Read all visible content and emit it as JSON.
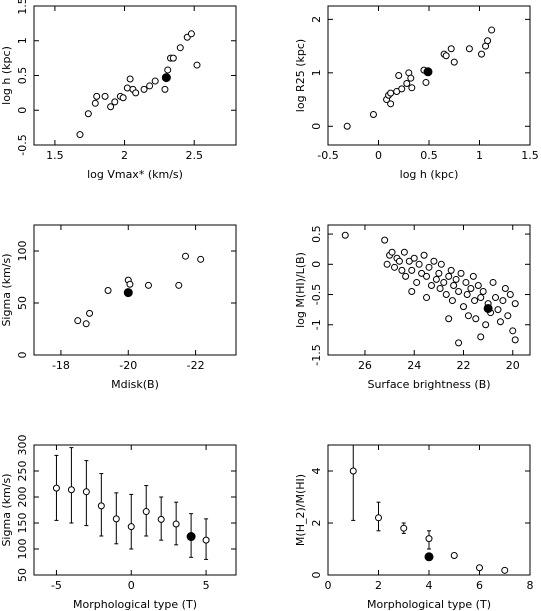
{
  "chart_data": [
    {
      "type": "scatter",
      "xlabel": "log Vmax* (km/s)",
      "ylabel": "log h (kpc)",
      "xlim": [
        1.35,
        2.8
      ],
      "ylim": [
        -0.5,
        1.5
      ],
      "xticks": [
        1.5,
        2,
        2.5
      ],
      "xtick_labels": [
        "1.5",
        "2",
        "2.5"
      ],
      "yticks": [
        -0.5,
        0,
        0.5,
        1,
        1.5
      ],
      "ytick_labels": [
        "-0.5",
        "0",
        "0.5",
        "1",
        "1.5"
      ],
      "points": [
        {
          "x": 1.68,
          "y": -0.35
        },
        {
          "x": 1.74,
          "y": -0.05
        },
        {
          "x": 1.79,
          "y": 0.1
        },
        {
          "x": 1.8,
          "y": 0.2
        },
        {
          "x": 1.86,
          "y": 0.2
        },
        {
          "x": 1.9,
          "y": 0.05
        },
        {
          "x": 1.93,
          "y": 0.12
        },
        {
          "x": 1.97,
          "y": 0.2
        },
        {
          "x": 1.99,
          "y": 0.18
        },
        {
          "x": 2.02,
          "y": 0.32
        },
        {
          "x": 2.04,
          "y": 0.45
        },
        {
          "x": 2.06,
          "y": 0.3
        },
        {
          "x": 2.08,
          "y": 0.25
        },
        {
          "x": 2.14,
          "y": 0.3
        },
        {
          "x": 2.18,
          "y": 0.35
        },
        {
          "x": 2.22,
          "y": 0.42
        },
        {
          "x": 2.29,
          "y": 0.3
        },
        {
          "x": 2.31,
          "y": 0.58
        },
        {
          "x": 2.33,
          "y": 0.75
        },
        {
          "x": 2.35,
          "y": 0.75
        },
        {
          "x": 2.4,
          "y": 0.9
        },
        {
          "x": 2.45,
          "y": 1.05
        },
        {
          "x": 2.48,
          "y": 1.1
        },
        {
          "x": 2.52,
          "y": 0.65
        }
      ],
      "highlight": {
        "x": 2.3,
        "y": 0.47
      }
    },
    {
      "type": "scatter",
      "xlabel": "log h (kpc)",
      "ylabel": "log R25 (kpc)",
      "xlim": [
        -0.5,
        1.5
      ],
      "ylim": [
        -0.35,
        2.25
      ],
      "xticks": [
        -0.5,
        0,
        0.5,
        1,
        1.5
      ],
      "xtick_labels": [
        "-0.5",
        "0",
        "0.5",
        "1",
        "1.5"
      ],
      "yticks": [
        0,
        1,
        2
      ],
      "ytick_labels": [
        "0",
        "1",
        "2"
      ],
      "points": [
        {
          "x": -0.31,
          "y": 0.0
        },
        {
          "x": -0.05,
          "y": 0.22
        },
        {
          "x": 0.08,
          "y": 0.5
        },
        {
          "x": 0.1,
          "y": 0.58
        },
        {
          "x": 0.12,
          "y": 0.62
        },
        {
          "x": 0.12,
          "y": 0.42
        },
        {
          "x": 0.18,
          "y": 0.65
        },
        {
          "x": 0.2,
          "y": 0.95
        },
        {
          "x": 0.23,
          "y": 0.7
        },
        {
          "x": 0.28,
          "y": 0.8
        },
        {
          "x": 0.3,
          "y": 1.0
        },
        {
          "x": 0.32,
          "y": 0.9
        },
        {
          "x": 0.33,
          "y": 0.72
        },
        {
          "x": 0.45,
          "y": 1.05
        },
        {
          "x": 0.47,
          "y": 0.82
        },
        {
          "x": 0.65,
          "y": 1.35
        },
        {
          "x": 0.67,
          "y": 1.32
        },
        {
          "x": 0.72,
          "y": 1.45
        },
        {
          "x": 0.75,
          "y": 1.2
        },
        {
          "x": 0.9,
          "y": 1.45
        },
        {
          "x": 1.02,
          "y": 1.35
        },
        {
          "x": 1.06,
          "y": 1.5
        },
        {
          "x": 1.08,
          "y": 1.6
        },
        {
          "x": 1.12,
          "y": 1.8
        }
      ],
      "highlight": {
        "x": 0.49,
        "y": 1.02
      }
    },
    {
      "type": "scatter",
      "xlabel": "Mdisk(B)",
      "ylabel": "Sigma (km/s)",
      "xlim": [
        -17.2,
        -23.2
      ],
      "ylim": [
        0,
        125
      ],
      "xticks": [
        -18,
        -20,
        -22
      ],
      "xtick_labels": [
        "-18",
        "-20",
        "-22"
      ],
      "yticks": [
        0,
        50,
        100
      ],
      "ytick_labels": [
        "0",
        "50",
        "100"
      ],
      "points": [
        {
          "x": -18.5,
          "y": 33
        },
        {
          "x": -18.75,
          "y": 30
        },
        {
          "x": -18.85,
          "y": 40
        },
        {
          "x": -19.4,
          "y": 62
        },
        {
          "x": -20.0,
          "y": 72
        },
        {
          "x": -20.05,
          "y": 68
        },
        {
          "x": -20.6,
          "y": 67
        },
        {
          "x": -21.5,
          "y": 67
        },
        {
          "x": -21.7,
          "y": 95
        },
        {
          "x": -22.15,
          "y": 92
        }
      ],
      "highlight": {
        "x": -20.0,
        "y": 60
      }
    },
    {
      "type": "scatter",
      "xlabel": "Surface brightness (B)",
      "ylabel": "log M(HI)/L(B)",
      "xlim": [
        27.5,
        19.3
      ],
      "ylim": [
        -1.5,
        0.65
      ],
      "xticks": [
        26,
        24,
        22,
        20
      ],
      "xtick_labels": [
        "26",
        "24",
        "22",
        "20"
      ],
      "yticks": [
        0.5,
        0,
        -0.5,
        -1,
        -1.5
      ],
      "ytick_labels": [
        "0.5",
        "0",
        "-0.5",
        "-1",
        "-1.5"
      ],
      "points": [
        {
          "x": 26.8,
          "y": 0.48
        },
        {
          "x": 25.2,
          "y": 0.4
        },
        {
          "x": 25.0,
          "y": 0.15
        },
        {
          "x": 25.1,
          "y": 0.0
        },
        {
          "x": 24.9,
          "y": 0.2
        },
        {
          "x": 24.8,
          "y": -0.05
        },
        {
          "x": 24.7,
          "y": 0.1
        },
        {
          "x": 24.6,
          "y": 0.05
        },
        {
          "x": 24.5,
          "y": -0.1
        },
        {
          "x": 24.4,
          "y": 0.2
        },
        {
          "x": 24.35,
          "y": -0.2
        },
        {
          "x": 24.2,
          "y": 0.05
        },
        {
          "x": 24.1,
          "y": -0.1
        },
        {
          "x": 24.0,
          "y": 0.1
        },
        {
          "x": 23.9,
          "y": -0.3
        },
        {
          "x": 23.8,
          "y": 0.0
        },
        {
          "x": 23.7,
          "y": -0.15
        },
        {
          "x": 23.6,
          "y": 0.15
        },
        {
          "x": 23.5,
          "y": -0.2
        },
        {
          "x": 23.4,
          "y": -0.05
        },
        {
          "x": 23.3,
          "y": -0.35
        },
        {
          "x": 23.2,
          "y": 0.05
        },
        {
          "x": 23.1,
          "y": -0.25
        },
        {
          "x": 23.0,
          "y": -0.15
        },
        {
          "x": 22.95,
          "y": -0.4
        },
        {
          "x": 22.9,
          "y": 0.0
        },
        {
          "x": 22.8,
          "y": -0.3
        },
        {
          "x": 22.7,
          "y": -0.5
        },
        {
          "x": 22.6,
          "y": -0.2
        },
        {
          "x": 22.5,
          "y": -0.1
        },
        {
          "x": 22.45,
          "y": -0.6
        },
        {
          "x": 22.4,
          "y": -0.35
        },
        {
          "x": 22.3,
          "y": -0.25
        },
        {
          "x": 22.2,
          "y": -0.45
        },
        {
          "x": 22.1,
          "y": -0.15
        },
        {
          "x": 22.0,
          "y": -0.7
        },
        {
          "x": 21.9,
          "y": -0.3
        },
        {
          "x": 21.85,
          "y": -0.5
        },
        {
          "x": 21.8,
          "y": -0.85
        },
        {
          "x": 21.7,
          "y": -0.4
        },
        {
          "x": 21.6,
          "y": -0.2
        },
        {
          "x": 21.55,
          "y": -0.6
        },
        {
          "x": 21.5,
          "y": -0.9
        },
        {
          "x": 21.4,
          "y": -0.35
        },
        {
          "x": 21.3,
          "y": -0.55
        },
        {
          "x": 21.2,
          "y": -0.45
        },
        {
          "x": 21.1,
          "y": -1.0
        },
        {
          "x": 21.0,
          "y": -0.65
        },
        {
          "x": 20.9,
          "y": -0.8
        },
        {
          "x": 20.8,
          "y": -0.3
        },
        {
          "x": 20.7,
          "y": -0.55
        },
        {
          "x": 20.6,
          "y": -0.75
        },
        {
          "x": 20.5,
          "y": -0.95
        },
        {
          "x": 20.4,
          "y": -0.6
        },
        {
          "x": 20.3,
          "y": -0.4
        },
        {
          "x": 20.2,
          "y": -0.85
        },
        {
          "x": 20.1,
          "y": -0.5
        },
        {
          "x": 20.0,
          "y": -1.1
        },
        {
          "x": 19.9,
          "y": -0.65
        },
        {
          "x": 22.2,
          "y": -1.3
        },
        {
          "x": 22.6,
          "y": -0.9
        },
        {
          "x": 23.5,
          "y": -0.55
        },
        {
          "x": 24.1,
          "y": -0.45
        },
        {
          "x": 21.3,
          "y": -1.2
        },
        {
          "x": 19.9,
          "y": -1.25
        }
      ],
      "highlight": {
        "x": 21.0,
        "y": -0.73
      }
    },
    {
      "type": "scatter",
      "xlabel": "Morphological type (T)",
      "ylabel": "Sigma (km/s)",
      "xlim": [
        -6.5,
        7
      ],
      "ylim": [
        50,
        300
      ],
      "xticks": [
        -5,
        0,
        5
      ],
      "xtick_labels": [
        "-5",
        "0",
        "5"
      ],
      "yticks": [
        50,
        100,
        150,
        200,
        250,
        300
      ],
      "ytick_labels": [
        "50",
        "100",
        "150",
        "200",
        "250",
        "300"
      ],
      "points": [
        {
          "x": -5,
          "y": 217,
          "err_low": 155,
          "err_high": 280
        },
        {
          "x": -4,
          "y": 214,
          "err_low": 150,
          "err_high": 295
        },
        {
          "x": -3,
          "y": 210,
          "err_low": 145,
          "err_high": 270
        },
        {
          "x": -2,
          "y": 183,
          "err_low": 125,
          "err_high": 245
        },
        {
          "x": -1,
          "y": 158,
          "err_low": 110,
          "err_high": 208
        },
        {
          "x": 0,
          "y": 143,
          "err_low": 100,
          "err_high": 205
        },
        {
          "x": 1,
          "y": 172,
          "err_low": 125,
          "err_high": 222
        },
        {
          "x": 2,
          "y": 157,
          "err_low": 117,
          "err_high": 200
        },
        {
          "x": 3,
          "y": 148,
          "err_low": 108,
          "err_high": 190
        },
        {
          "x": 5,
          "y": 117,
          "err_low": 80,
          "err_high": 158
        }
      ],
      "highlight": {
        "x": 4,
        "y": 124,
        "err_low": 84,
        "err_high": 168
      }
    },
    {
      "type": "scatter",
      "xlabel": "Morphological type (T)",
      "ylabel": "M(H_2)/M(HI)",
      "xlim": [
        0,
        8
      ],
      "ylim": [
        0,
        5
      ],
      "xticks": [
        0,
        2,
        4,
        6,
        8
      ],
      "xtick_labels": [
        "0",
        "2",
        "4",
        "6",
        "8"
      ],
      "yticks": [
        0,
        2,
        4
      ],
      "ytick_labels": [
        "0",
        "2",
        "4"
      ],
      "points": [
        {
          "x": 1,
          "y": 4.0,
          "err_low": 2.1,
          "err_high": 5.0
        },
        {
          "x": 2,
          "y": 2.2,
          "err_low": 1.7,
          "err_high": 2.8
        },
        {
          "x": 3,
          "y": 1.8,
          "err_low": 1.6,
          "err_high": 2.0
        },
        {
          "x": 4,
          "y": 1.4,
          "err_low": 1.0,
          "err_high": 1.7
        },
        {
          "x": 5,
          "y": 0.75,
          "err_low": 0.7,
          "err_high": 0.8
        },
        {
          "x": 6,
          "y": 0.28,
          "err_low": 0.22,
          "err_high": 0.34
        },
        {
          "x": 7,
          "y": 0.18,
          "err_low": 0.12,
          "err_high": 0.24
        }
      ],
      "highlight": {
        "x": 4,
        "y": 0.7,
        "err_low": 0.6,
        "err_high": 0.8
      }
    }
  ]
}
